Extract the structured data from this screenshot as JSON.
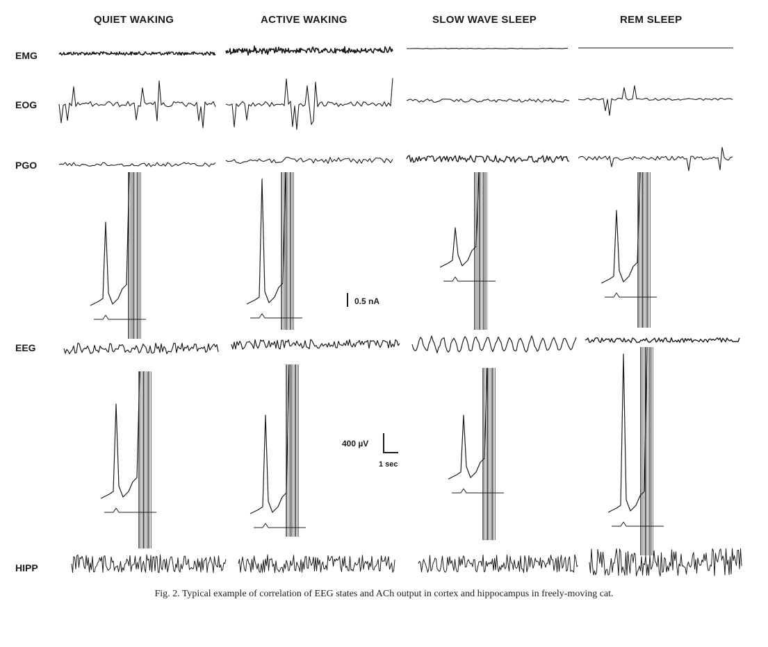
{
  "figure": {
    "columns": [
      "QUIET WAKING",
      "ACTIVE WAKING",
      "SLOW WAVE SLEEP",
      "REM SLEEP"
    ],
    "rows": {
      "emg": "EMG",
      "eog": "EOG",
      "pgo": "PGO",
      "eeg": "EEG",
      "hipp": "HIPP"
    },
    "scale_current": "0.5 nA",
    "scale_voltage": "400 µV",
    "scale_time": "1 sec",
    "caption": "Fig. 2. Typical example of correlation of EEG states and ACh output in cortex and hippocampus in freely-moving cat."
  }
}
